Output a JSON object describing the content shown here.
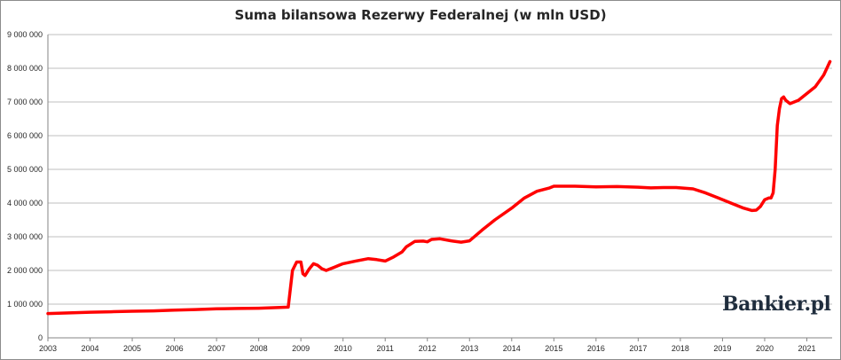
{
  "chart_data": {
    "type": "line",
    "title": "Suma bilansowa Rezerwy Federalnej (w mln USD)",
    "xlabel": "",
    "ylabel": "",
    "x_tick_labels": [
      "2003",
      "2004",
      "2005",
      "2006",
      "2007",
      "2008",
      "2009",
      "2010",
      "2011",
      "2012",
      "2013",
      "2014",
      "2015",
      "2016",
      "2017",
      "2018",
      "2019",
      "2020",
      "2021"
    ],
    "y_tick_labels": [
      "0",
      "1 000 000",
      "2 000 000",
      "3 000 000",
      "4 000 000",
      "5 000 000",
      "6 000 000",
      "7 000 000",
      "8 000 000",
      "9 000 000"
    ],
    "xlim": [
      2003.0,
      2021.6
    ],
    "ylim": [
      0,
      9000000
    ],
    "grid": true,
    "legend": "none",
    "series": [
      {
        "color": "#ff0000",
        "x": [
          2003.0,
          2003.5,
          2004.0,
          2004.5,
          2005.0,
          2005.5,
          2006.0,
          2006.5,
          2007.0,
          2007.5,
          2008.0,
          2008.5,
          2008.7,
          2008.8,
          2008.9,
          2009.0,
          2009.05,
          2009.1,
          2009.2,
          2009.3,
          2009.4,
          2009.5,
          2009.6,
          2009.7,
          2009.8,
          2009.9,
          2010.0,
          2010.3,
          2010.6,
          2010.8,
          2011.0,
          2011.2,
          2011.4,
          2011.5,
          2011.7,
          2011.9,
          2012.0,
          2012.1,
          2012.3,
          2012.6,
          2012.8,
          2013.0,
          2013.3,
          2013.6,
          2014.0,
          2014.3,
          2014.6,
          2014.9,
          2015.0,
          2015.5,
          2016.0,
          2016.5,
          2017.0,
          2017.3,
          2017.6,
          2017.9,
          2018.0,
          2018.3,
          2018.6,
          2018.9,
          2019.2,
          2019.5,
          2019.7,
          2019.8,
          2019.9,
          2020.0,
          2020.1,
          2020.15,
          2020.2,
          2020.25,
          2020.3,
          2020.35,
          2020.4,
          2020.45,
          2020.5,
          2020.6,
          2020.8,
          2021.0,
          2021.2,
          2021.4,
          2021.55
        ],
        "values": [
          720000,
          740000,
          760000,
          775000,
          790000,
          800000,
          820000,
          840000,
          860000,
          870000,
          880000,
          900000,
          910000,
          2000000,
          2250000,
          2250000,
          1900000,
          1850000,
          2050000,
          2200000,
          2150000,
          2050000,
          2000000,
          2050000,
          2100000,
          2150000,
          2200000,
          2280000,
          2350000,
          2320000,
          2280000,
          2400000,
          2550000,
          2700000,
          2860000,
          2870000,
          2850000,
          2920000,
          2940000,
          2870000,
          2840000,
          2880000,
          3200000,
          3500000,
          3850000,
          4150000,
          4350000,
          4450000,
          4500000,
          4500000,
          4480000,
          4490000,
          4470000,
          4450000,
          4460000,
          4460000,
          4450000,
          4420000,
          4300000,
          4150000,
          4000000,
          3850000,
          3780000,
          3790000,
          3900000,
          4100000,
          4150000,
          4150000,
          4300000,
          5000000,
          6300000,
          6800000,
          7100000,
          7150000,
          7050000,
          6950000,
          7050000,
          7250000,
          7450000,
          7800000,
          8200000
        ]
      }
    ]
  },
  "watermark": "Bankier.pl"
}
